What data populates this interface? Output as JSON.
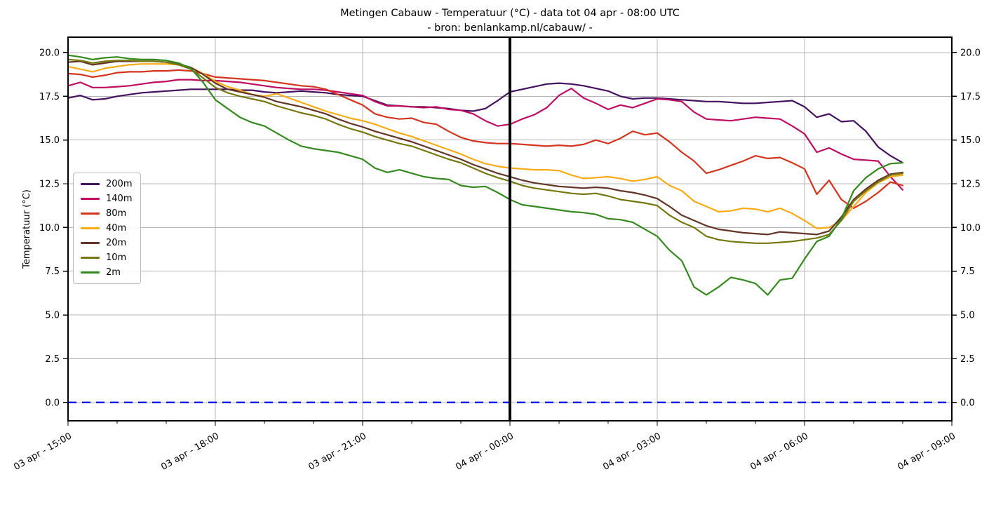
{
  "chart_data": {
    "type": "line",
    "title": "Metingen Cabauw - Temperatuur (°C) - data tot 04 apr - 08:00 UTC",
    "subtitle": "- bron: benlankamp.nl/cabauw/ -",
    "ylabel": "Temperatuur (°C)",
    "grid": true,
    "grid_color": "#b4b4b4",
    "legend_position": "upper-left",
    "x_axis": {
      "range_hours": [
        0,
        18
      ],
      "major_tick_hours": [
        0,
        3,
        6,
        9,
        12,
        15,
        18
      ],
      "tick_labels": [
        "03 apr - 15:00",
        "03 apr - 18:00",
        "03 apr - 21:00",
        "04 apr - 00:00",
        "04 apr - 03:00",
        "04 apr - 06:00",
        "04 apr - 09:00"
      ],
      "minor_tick_hours": [
        1,
        2,
        4,
        5,
        7,
        8,
        10,
        11,
        13,
        14,
        16,
        17
      ],
      "label_rotation_deg": -30
    },
    "y_axis": {
      "range": [
        -1.05,
        20.88
      ],
      "ticks": [
        20,
        17.5,
        15,
        12.5,
        10,
        7.5,
        5,
        2.5,
        0
      ],
      "tick_labels": [
        "20.0",
        "17.5",
        "15.0",
        "12.5",
        "10.0",
        "7.5",
        "5.0",
        "2.5",
        "0.0"
      ],
      "labels_both_sides": true,
      "label": "Temperatuur (°C)"
    },
    "annotations": {
      "now_line": {
        "hour": 9,
        "at_label": "04 apr - 00:00",
        "color": "#000000",
        "width": 4
      },
      "zero_line": {
        "temp": 0,
        "color": "#0000ff",
        "dashed": true
      }
    },
    "sampling": {
      "start_hour": 0,
      "step_hours": 0.25,
      "end_hour": 17
    },
    "series": [
      {
        "name": "200m",
        "color": "#45105f",
        "values": [
          17.4,
          17.55,
          17.3,
          17.35,
          17.5,
          17.6,
          17.7,
          17.75,
          17.8,
          17.85,
          17.9,
          17.9,
          17.9,
          17.9,
          17.85,
          17.85,
          17.75,
          17.7,
          17.75,
          17.8,
          17.75,
          17.7,
          17.6,
          17.55,
          17.5,
          17.25,
          17.0,
          16.95,
          16.9,
          16.9,
          16.85,
          16.8,
          16.7,
          16.65,
          16.8,
          17.25,
          17.75,
          17.9,
          18.05,
          18.2,
          18.25,
          18.2,
          18.1,
          17.95,
          17.8,
          17.5,
          17.35,
          17.4,
          17.4,
          17.35,
          17.3,
          17.25,
          17.2,
          17.2,
          17.15,
          17.1,
          17.1,
          17.15,
          17.2,
          17.25,
          16.9,
          16.3,
          16.5,
          16.05,
          16.1,
          15.5,
          14.6,
          14.1,
          13.7
        ]
      },
      {
        "name": "140m",
        "color": "#c00d63",
        "values": [
          18.1,
          18.3,
          18.0,
          18.0,
          18.05,
          18.1,
          18.2,
          18.3,
          18.35,
          18.45,
          18.45,
          18.4,
          18.4,
          18.35,
          18.3,
          18.2,
          18.1,
          18.0,
          17.95,
          17.9,
          17.9,
          17.85,
          17.75,
          17.65,
          17.55,
          17.2,
          16.95,
          16.95,
          16.9,
          16.85,
          16.9,
          16.75,
          16.7,
          16.5,
          16.1,
          15.8,
          15.9,
          16.2,
          16.45,
          16.85,
          17.55,
          17.95,
          17.4,
          17.1,
          16.75,
          17.0,
          16.85,
          17.1,
          17.35,
          17.3,
          17.2,
          16.6,
          16.2,
          16.15,
          16.1,
          16.2,
          16.3,
          16.25,
          16.2,
          15.8,
          15.35,
          14.3,
          14.55,
          14.2,
          13.9,
          13.85,
          13.8,
          12.9,
          12.15
        ]
      },
      {
        "name": "80m",
        "color": "#d4351f",
        "values": [
          18.8,
          18.75,
          18.6,
          18.7,
          18.85,
          18.9,
          18.9,
          18.95,
          18.95,
          19.0,
          18.95,
          18.8,
          18.6,
          18.55,
          18.5,
          18.45,
          18.4,
          18.3,
          18.2,
          18.1,
          18.05,
          17.9,
          17.6,
          17.3,
          17.0,
          16.5,
          16.3,
          16.2,
          16.25,
          16.0,
          15.9,
          15.5,
          15.15,
          14.95,
          14.85,
          14.8,
          14.8,
          14.75,
          14.7,
          14.65,
          14.7,
          14.65,
          14.75,
          15.0,
          14.8,
          15.1,
          15.5,
          15.3,
          15.4,
          14.9,
          14.3,
          13.8,
          13.1,
          13.3,
          13.55,
          13.8,
          14.1,
          13.95,
          14.0,
          13.7,
          13.35,
          11.9,
          12.7,
          11.6,
          11.1,
          11.5,
          12.0,
          12.6,
          12.4
        ]
      },
      {
        "name": "40m",
        "color": "#f9ab16",
        "values": [
          19.2,
          19.05,
          18.9,
          19.1,
          19.2,
          19.3,
          19.35,
          19.35,
          19.35,
          19.3,
          19.15,
          18.8,
          18.35,
          18.05,
          17.85,
          17.6,
          17.5,
          17.65,
          17.4,
          17.15,
          16.9,
          16.65,
          16.45,
          16.25,
          16.1,
          15.9,
          15.65,
          15.4,
          15.2,
          14.95,
          14.7,
          14.45,
          14.2,
          13.9,
          13.65,
          13.5,
          13.4,
          13.35,
          13.3,
          13.3,
          13.25,
          13.0,
          12.8,
          12.85,
          12.9,
          12.8,
          12.65,
          12.75,
          12.9,
          12.4,
          12.1,
          11.5,
          11.2,
          10.9,
          10.95,
          11.1,
          11.05,
          10.9,
          11.1,
          10.8,
          10.4,
          9.95,
          10.0,
          10.4,
          11.2,
          12.0,
          12.55,
          12.9,
          13.0
        ]
      },
      {
        "name": "20m",
        "color": "#633527",
        "values": [
          19.45,
          19.5,
          19.3,
          19.4,
          19.5,
          19.5,
          19.5,
          19.5,
          19.45,
          19.35,
          19.15,
          18.75,
          18.25,
          17.9,
          17.75,
          17.6,
          17.45,
          17.2,
          17.05,
          16.9,
          16.7,
          16.5,
          16.2,
          15.95,
          15.75,
          15.5,
          15.3,
          15.1,
          14.9,
          14.65,
          14.4,
          14.15,
          13.9,
          13.6,
          13.35,
          13.1,
          12.9,
          12.7,
          12.55,
          12.45,
          12.35,
          12.3,
          12.25,
          12.3,
          12.25,
          12.1,
          12.0,
          11.85,
          11.65,
          11.2,
          10.7,
          10.4,
          10.1,
          9.9,
          9.8,
          9.7,
          9.65,
          9.6,
          9.75,
          9.7,
          9.65,
          9.6,
          9.8,
          10.6,
          11.6,
          12.2,
          12.7,
          13.05,
          13.15
        ]
      },
      {
        "name": "10m",
        "color": "#76770e",
        "values": [
          19.6,
          19.55,
          19.4,
          19.5,
          19.55,
          19.55,
          19.5,
          19.5,
          19.45,
          19.3,
          19.05,
          18.55,
          18.0,
          17.7,
          17.5,
          17.35,
          17.2,
          16.95,
          16.75,
          16.55,
          16.4,
          16.2,
          15.9,
          15.65,
          15.45,
          15.2,
          15.0,
          14.8,
          14.65,
          14.4,
          14.15,
          13.9,
          13.7,
          13.4,
          13.1,
          12.85,
          12.65,
          12.4,
          12.25,
          12.15,
          12.05,
          11.95,
          11.9,
          11.95,
          11.8,
          11.6,
          11.5,
          11.4,
          11.25,
          10.7,
          10.3,
          10.0,
          9.5,
          9.3,
          9.2,
          9.15,
          9.1,
          9.1,
          9.15,
          9.2,
          9.3,
          9.4,
          9.6,
          10.4,
          11.5,
          12.1,
          12.6,
          13.0,
          13.1
        ]
      },
      {
        "name": "2m",
        "color": "#358a1f",
        "values": [
          19.85,
          19.75,
          19.6,
          19.7,
          19.75,
          19.65,
          19.6,
          19.6,
          19.55,
          19.4,
          19.1,
          18.3,
          17.3,
          16.8,
          16.3,
          16.0,
          15.8,
          15.4,
          15.0,
          14.65,
          14.5,
          14.4,
          14.3,
          14.1,
          13.9,
          13.4,
          13.15,
          13.3,
          13.1,
          12.9,
          12.8,
          12.75,
          12.4,
          12.3,
          12.35,
          12.0,
          11.6,
          11.3,
          11.2,
          11.1,
          11.0,
          10.9,
          10.85,
          10.75,
          10.5,
          10.45,
          10.3,
          9.9,
          9.5,
          8.7,
          8.1,
          6.6,
          6.15,
          6.6,
          7.15,
          7.0,
          6.8,
          6.15,
          7.0,
          7.1,
          8.2,
          9.2,
          9.5,
          10.5,
          12.1,
          12.85,
          13.35,
          13.65,
          13.7
        ]
      }
    ]
  }
}
